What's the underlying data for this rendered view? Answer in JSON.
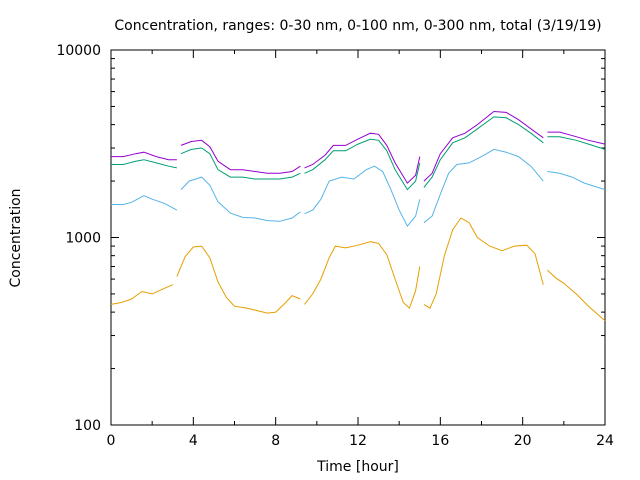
{
  "chart_data": {
    "type": "line",
    "title": "Concentration, ranges: 0-30 nm, 0-100 nm, 0-300 nm, total (3/19/19)",
    "xlabel": "Time [hour]",
    "ylabel": "Concentration",
    "xlim": [
      0,
      24
    ],
    "ylim": [
      100,
      10000
    ],
    "y_scale": "log",
    "x_ticks": [
      0,
      4,
      8,
      12,
      16,
      20,
      24
    ],
    "x_tick_labels": [
      "0",
      "4",
      "8",
      "12",
      "16",
      "20",
      "24"
    ],
    "y_ticks": [
      100,
      1000,
      10000
    ],
    "y_tick_labels": [
      "100",
      "1000",
      "10000"
    ],
    "grid": false,
    "legend": "none",
    "series": [
      {
        "color": "#e69f00",
        "segments": [
          [
            [
              0,
              440
            ],
            [
              0.5,
              450
            ],
            [
              1,
              470
            ],
            [
              1.5,
              515
            ],
            [
              2,
              500
            ],
            [
              2.5,
              530
            ],
            [
              3,
              560
            ]
          ],
          [
            [
              3.2,
              620
            ],
            [
              3.6,
              790
            ],
            [
              4,
              890
            ],
            [
              4.4,
              900
            ],
            [
              4.8,
              780
            ],
            [
              5.2,
              580
            ],
            [
              5.6,
              480
            ],
            [
              6,
              430
            ],
            [
              6.6,
              420
            ],
            [
              7,
              410
            ],
            [
              7.6,
              395
            ],
            [
              8,
              400
            ],
            [
              8.4,
              440
            ],
            [
              8.8,
              490
            ],
            [
              9.2,
              470
            ]
          ],
          [
            [
              9.4,
              440
            ],
            [
              9.8,
              500
            ],
            [
              10.2,
              600
            ],
            [
              10.6,
              780
            ],
            [
              10.9,
              900
            ],
            [
              11.4,
              880
            ],
            [
              12,
              910
            ],
            [
              12.6,
              950
            ],
            [
              13,
              930
            ],
            [
              13.4,
              810
            ],
            [
              13.8,
              600
            ],
            [
              14.2,
              450
            ],
            [
              14.5,
              420
            ],
            [
              14.8,
              520
            ],
            [
              15,
              700
            ]
          ],
          [
            [
              15.2,
              440
            ],
            [
              15.5,
              420
            ],
            [
              15.8,
              500
            ],
            [
              16.2,
              800
            ],
            [
              16.6,
              1100
            ],
            [
              17,
              1270
            ],
            [
              17.4,
              1200
            ],
            [
              17.8,
              1000
            ],
            [
              18.4,
              900
            ],
            [
              19,
              850
            ],
            [
              19.6,
              900
            ],
            [
              20.2,
              910
            ],
            [
              20.6,
              820
            ],
            [
              21,
              560
            ]
          ],
          [
            [
              21.2,
              670
            ],
            [
              21.6,
              610
            ],
            [
              22,
              570
            ],
            [
              22.6,
              500
            ],
            [
              23.2,
              430
            ],
            [
              24,
              360
            ]
          ]
        ]
      },
      {
        "color": "#56b4e9",
        "segments": [
          [
            [
              0,
              1500
            ],
            [
              0.6,
              1500
            ],
            [
              1,
              1540
            ],
            [
              1.6,
              1670
            ],
            [
              2,
              1600
            ],
            [
              2.6,
              1520
            ],
            [
              3.2,
              1400
            ]
          ],
          [
            [
              3.4,
              1800
            ],
            [
              3.8,
              2000
            ],
            [
              4.4,
              2100
            ],
            [
              4.8,
              1900
            ],
            [
              5.2,
              1550
            ],
            [
              5.8,
              1350
            ],
            [
              6.4,
              1280
            ],
            [
              7,
              1270
            ],
            [
              7.6,
              1230
            ],
            [
              8.2,
              1220
            ],
            [
              8.8,
              1270
            ],
            [
              9.2,
              1370
            ]
          ],
          [
            [
              9.4,
              1340
            ],
            [
              9.8,
              1400
            ],
            [
              10.2,
              1600
            ],
            [
              10.6,
              2000
            ],
            [
              11.2,
              2100
            ],
            [
              11.8,
              2050
            ],
            [
              12.4,
              2300
            ],
            [
              12.8,
              2400
            ],
            [
              13.2,
              2250
            ],
            [
              13.6,
              1800
            ],
            [
              14,
              1400
            ],
            [
              14.4,
              1150
            ],
            [
              14.8,
              1300
            ],
            [
              15,
              1600
            ]
          ],
          [
            [
              15.2,
              1200
            ],
            [
              15.6,
              1300
            ],
            [
              16,
              1700
            ],
            [
              16.4,
              2200
            ],
            [
              16.8,
              2450
            ],
            [
              17.4,
              2500
            ],
            [
              18,
              2700
            ],
            [
              18.6,
              2950
            ],
            [
              19.2,
              2850
            ],
            [
              19.8,
              2700
            ],
            [
              20.4,
              2400
            ],
            [
              21,
              2000
            ]
          ],
          [
            [
              21.2,
              2250
            ],
            [
              21.8,
              2200
            ],
            [
              22.4,
              2100
            ],
            [
              23,
              1950
            ],
            [
              24,
              1800
            ]
          ]
        ]
      },
      {
        "color": "#009e73",
        "segments": [
          [
            [
              0,
              2450
            ],
            [
              0.6,
              2450
            ],
            [
              1.2,
              2550
            ],
            [
              1.6,
              2600
            ],
            [
              2.2,
              2500
            ],
            [
              2.8,
              2400
            ],
            [
              3.2,
              2350
            ]
          ],
          [
            [
              3.4,
              2800
            ],
            [
              3.9,
              2950
            ],
            [
              4.4,
              3000
            ],
            [
              4.8,
              2800
            ],
            [
              5.2,
              2300
            ],
            [
              5.8,
              2100
            ],
            [
              6.4,
              2100
            ],
            [
              7,
              2050
            ],
            [
              7.6,
              2050
            ],
            [
              8.2,
              2050
            ],
            [
              8.8,
              2100
            ],
            [
              9.2,
              2200
            ]
          ],
          [
            [
              9.4,
              2200
            ],
            [
              9.8,
              2300
            ],
            [
              10.4,
              2600
            ],
            [
              10.8,
              2900
            ],
            [
              11.4,
              2900
            ],
            [
              12,
              3150
            ],
            [
              12.6,
              3350
            ],
            [
              13,
              3300
            ],
            [
              13.4,
              2900
            ],
            [
              13.8,
              2300
            ],
            [
              14.4,
              1800
            ],
            [
              14.8,
              2000
            ],
            [
              15,
              2500
            ]
          ],
          [
            [
              15.2,
              1850
            ],
            [
              15.6,
              2100
            ],
            [
              16,
              2600
            ],
            [
              16.6,
              3200
            ],
            [
              17.2,
              3400
            ],
            [
              17.8,
              3800
            ],
            [
              18.6,
              4400
            ],
            [
              19.2,
              4350
            ],
            [
              19.8,
              4000
            ],
            [
              20.4,
              3600
            ],
            [
              21,
              3200
            ]
          ],
          [
            [
              21.2,
              3450
            ],
            [
              21.8,
              3450
            ],
            [
              22.6,
              3300
            ],
            [
              23.2,
              3150
            ],
            [
              24,
              2950
            ]
          ]
        ]
      },
      {
        "color": "#9400d3",
        "segments": [
          [
            [
              0,
              2700
            ],
            [
              0.6,
              2700
            ],
            [
              1.2,
              2800
            ],
            [
              1.6,
              2850
            ],
            [
              2.2,
              2700
            ],
            [
              2.8,
              2600
            ],
            [
              3.2,
              2600
            ]
          ],
          [
            [
              3.4,
              3100
            ],
            [
              3.9,
              3250
            ],
            [
              4.4,
              3300
            ],
            [
              4.8,
              3050
            ],
            [
              5.2,
              2550
            ],
            [
              5.8,
              2300
            ],
            [
              6.4,
              2300
            ],
            [
              7,
              2250
            ],
            [
              7.6,
              2200
            ],
            [
              8.2,
              2200
            ],
            [
              8.8,
              2250
            ],
            [
              9.2,
              2400
            ]
          ],
          [
            [
              9.4,
              2350
            ],
            [
              9.8,
              2450
            ],
            [
              10.4,
              2750
            ],
            [
              10.8,
              3100
            ],
            [
              11.4,
              3100
            ],
            [
              12,
              3350
            ],
            [
              12.6,
              3600
            ],
            [
              13,
              3550
            ],
            [
              13.4,
              3100
            ],
            [
              13.8,
              2500
            ],
            [
              14.4,
              1950
            ],
            [
              14.8,
              2150
            ],
            [
              15,
              2700
            ]
          ],
          [
            [
              15.2,
              2000
            ],
            [
              15.6,
              2200
            ],
            [
              16,
              2800
            ],
            [
              16.6,
              3400
            ],
            [
              17.2,
              3600
            ],
            [
              17.8,
              4000
            ],
            [
              18.6,
              4700
            ],
            [
              19.2,
              4650
            ],
            [
              19.8,
              4250
            ],
            [
              20.4,
              3800
            ],
            [
              21,
              3400
            ]
          ],
          [
            [
              21.2,
              3650
            ],
            [
              21.8,
              3650
            ],
            [
              22.6,
              3450
            ],
            [
              23.2,
              3300
            ],
            [
              24,
              3150
            ]
          ]
        ]
      }
    ]
  }
}
